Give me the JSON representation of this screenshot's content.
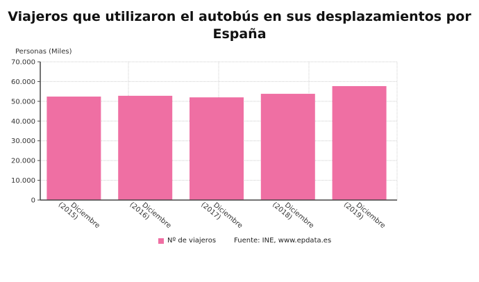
{
  "chart_data": {
    "type": "bar",
    "title": "Viajeros que utilizaron el autobús en sus desplazamientos por España",
    "ylabel": "Personas (Miles)",
    "categories": [
      "Diciembre (2015)",
      "Diciembre (2016)",
      "Diciembre (2017)",
      "Diciembre (2018)",
      "Diciembre (2019)"
    ],
    "category_lines": [
      [
        "Diciembre",
        "(2015)"
      ],
      [
        "Diciembre",
        "(2016)"
      ],
      [
        "Diciembre",
        "(2017)"
      ],
      [
        "Diciembre",
        "(2018)"
      ],
      [
        "Diciembre",
        "(2019)"
      ]
    ],
    "series": [
      {
        "name": "Nº de viajeros",
        "values": [
          52400,
          52800,
          52000,
          53800,
          57700
        ],
        "color": "#ef6fa3"
      }
    ],
    "ylim": [
      0,
      70000
    ],
    "yticks": [
      "0",
      "10.000",
      "20.000",
      "30.000",
      "40.000",
      "50.000",
      "60.000",
      "70.000"
    ],
    "grid": true,
    "legend": "bottom",
    "source": "Fuente: INE, www.epdata.es"
  }
}
